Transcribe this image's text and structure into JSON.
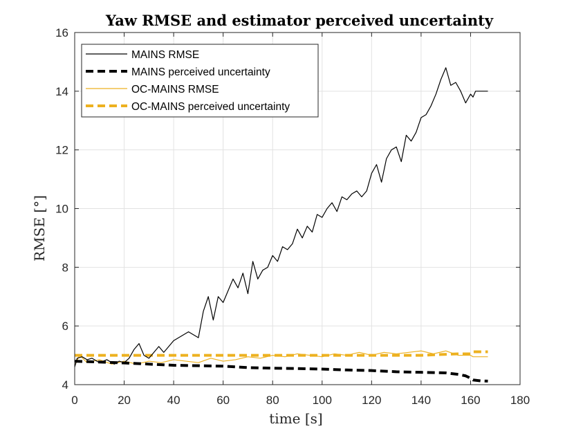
{
  "chart_data": {
    "type": "line",
    "title": "Yaw RMSE and estimator perceived uncertainty",
    "xlabel": "time [s]",
    "ylabel": "RMSE [°]",
    "xlim": [
      0,
      180
    ],
    "ylim": [
      4,
      16
    ],
    "xticks": [
      0,
      20,
      40,
      60,
      80,
      100,
      120,
      140,
      160,
      180
    ],
    "yticks": [
      4,
      6,
      8,
      10,
      12,
      14,
      16
    ],
    "grid": true,
    "legend_position": "top-left",
    "series": [
      {
        "name": "MAINS RMSE",
        "color": "#000000",
        "style": "solid",
        "x": [
          0,
          1,
          3,
          5,
          7,
          10,
          13,
          16,
          18,
          20,
          22,
          24,
          26,
          28,
          30,
          32,
          34,
          36,
          38,
          40,
          42,
          44,
          46,
          48,
          50,
          52,
          54,
          56,
          58,
          60,
          62,
          64,
          66,
          68,
          70,
          72,
          74,
          76,
          78,
          80,
          82,
          84,
          86,
          88,
          90,
          92,
          94,
          96,
          98,
          100,
          102,
          104,
          106,
          108,
          110,
          112,
          114,
          116,
          118,
          120,
          122,
          124,
          126,
          128,
          130,
          132,
          134,
          136,
          138,
          140,
          142,
          144,
          146,
          148,
          150,
          152,
          154,
          156,
          158,
          160,
          161,
          162,
          164,
          167
        ],
        "values": [
          4.6,
          4.9,
          4.95,
          4.85,
          4.9,
          4.75,
          4.85,
          4.7,
          4.8,
          4.75,
          4.9,
          5.2,
          5.4,
          5.0,
          4.9,
          5.1,
          5.3,
          5.1,
          5.3,
          5.5,
          5.6,
          5.7,
          5.8,
          5.7,
          5.6,
          6.5,
          7.0,
          6.2,
          7.0,
          6.8,
          7.2,
          7.6,
          7.3,
          7.8,
          7.1,
          8.2,
          7.6,
          7.9,
          8.0,
          8.4,
          8.2,
          8.7,
          8.6,
          8.8,
          9.3,
          9.0,
          9.4,
          9.2,
          9.8,
          9.7,
          10.0,
          10.2,
          9.9,
          10.4,
          10.3,
          10.5,
          10.6,
          10.4,
          10.6,
          11.2,
          11.5,
          10.9,
          11.7,
          12.0,
          12.1,
          11.6,
          12.5,
          12.3,
          12.6,
          13.1,
          13.2,
          13.5,
          13.9,
          14.4,
          14.8,
          14.2,
          14.3,
          14.0,
          13.6,
          13.9,
          13.8,
          14.0,
          14.0,
          14.0
        ]
      },
      {
        "name": "MAINS perceived uncertainty",
        "color": "#000000",
        "style": "dashed",
        "x": [
          0,
          20,
          40,
          60,
          70,
          80,
          90,
          100,
          110,
          120,
          130,
          140,
          150,
          155,
          158,
          160,
          161,
          164,
          167
        ],
        "values": [
          4.8,
          4.74,
          4.66,
          4.63,
          4.58,
          4.56,
          4.55,
          4.53,
          4.5,
          4.48,
          4.44,
          4.42,
          4.4,
          4.35,
          4.3,
          4.22,
          4.16,
          4.13,
          4.12
        ]
      },
      {
        "name": "OC-MAINS RMSE",
        "color": "#EDB120",
        "style": "solid",
        "x": [
          0,
          2,
          5,
          10,
          15,
          20,
          25,
          30,
          35,
          40,
          45,
          50,
          55,
          60,
          65,
          70,
          75,
          80,
          85,
          90,
          95,
          100,
          105,
          110,
          115,
          120,
          125,
          130,
          135,
          140,
          145,
          150,
          155,
          160,
          161,
          164,
          167
        ],
        "values": [
          4.65,
          5.0,
          4.75,
          4.85,
          4.7,
          4.8,
          4.7,
          4.8,
          4.75,
          4.85,
          4.8,
          4.75,
          4.9,
          4.8,
          4.85,
          4.95,
          4.9,
          5.0,
          4.95,
          5.05,
          5.0,
          4.95,
          5.05,
          5.0,
          5.1,
          5.0,
          5.1,
          5.05,
          5.1,
          5.15,
          5.05,
          5.15,
          5.0,
          5.0,
          4.95,
          4.95,
          4.95
        ]
      },
      {
        "name": "OC-MAINS perceived uncertainty",
        "color": "#EDB120",
        "style": "dashed",
        "x": [
          0,
          20,
          40,
          60,
          80,
          100,
          120,
          140,
          155,
          158,
          160,
          161,
          164,
          167
        ],
        "values": [
          5.0,
          5.0,
          5.0,
          5.0,
          5.0,
          5.0,
          5.0,
          5.0,
          5.05,
          5.05,
          5.05,
          5.12,
          5.12,
          5.12
        ]
      }
    ]
  }
}
